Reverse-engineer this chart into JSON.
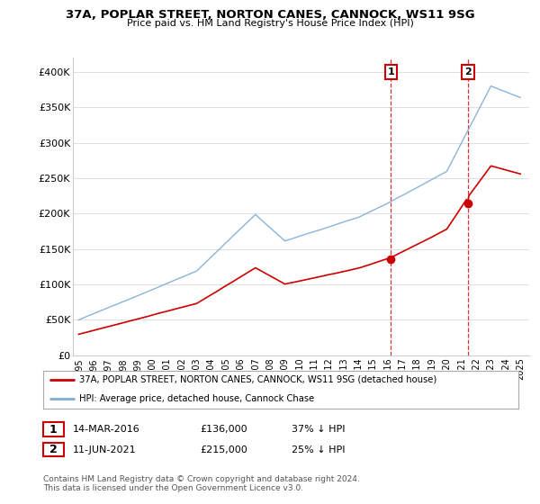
{
  "title": "37A, POPLAR STREET, NORTON CANES, CANNOCK, WS11 9SG",
  "subtitle": "Price paid vs. HM Land Registry's House Price Index (HPI)",
  "background_color": "#ffffff",
  "grid_color": "#e0e0e0",
  "hpi_color": "#7dadd4",
  "price_color": "#cc0000",
  "legend_label1": "37A, POPLAR STREET, NORTON CANES, CANNOCK, WS11 9SG (detached house)",
  "legend_label2": "HPI: Average price, detached house, Cannock Chase",
  "table_row1": [
    "1",
    "14-MAR-2016",
    "£136,000",
    "37% ↓ HPI"
  ],
  "table_row2": [
    "2",
    "11-JUN-2021",
    "£215,000",
    "25% ↓ HPI"
  ],
  "footnote": "Contains HM Land Registry data © Crown copyright and database right 2024.\nThis data is licensed under the Open Government Licence v3.0.",
  "ylim": [
    0,
    420000
  ],
  "yticks": [
    0,
    50000,
    100000,
    150000,
    200000,
    250000,
    300000,
    350000,
    400000
  ],
  "ytick_labels": [
    "£0",
    "£50K",
    "£100K",
    "£150K",
    "£200K",
    "£250K",
    "£300K",
    "£350K",
    "£400K"
  ],
  "sale1_year": 2016.2,
  "sale2_year": 2021.45,
  "sale1_price": 136000,
  "sale2_price": 215000
}
